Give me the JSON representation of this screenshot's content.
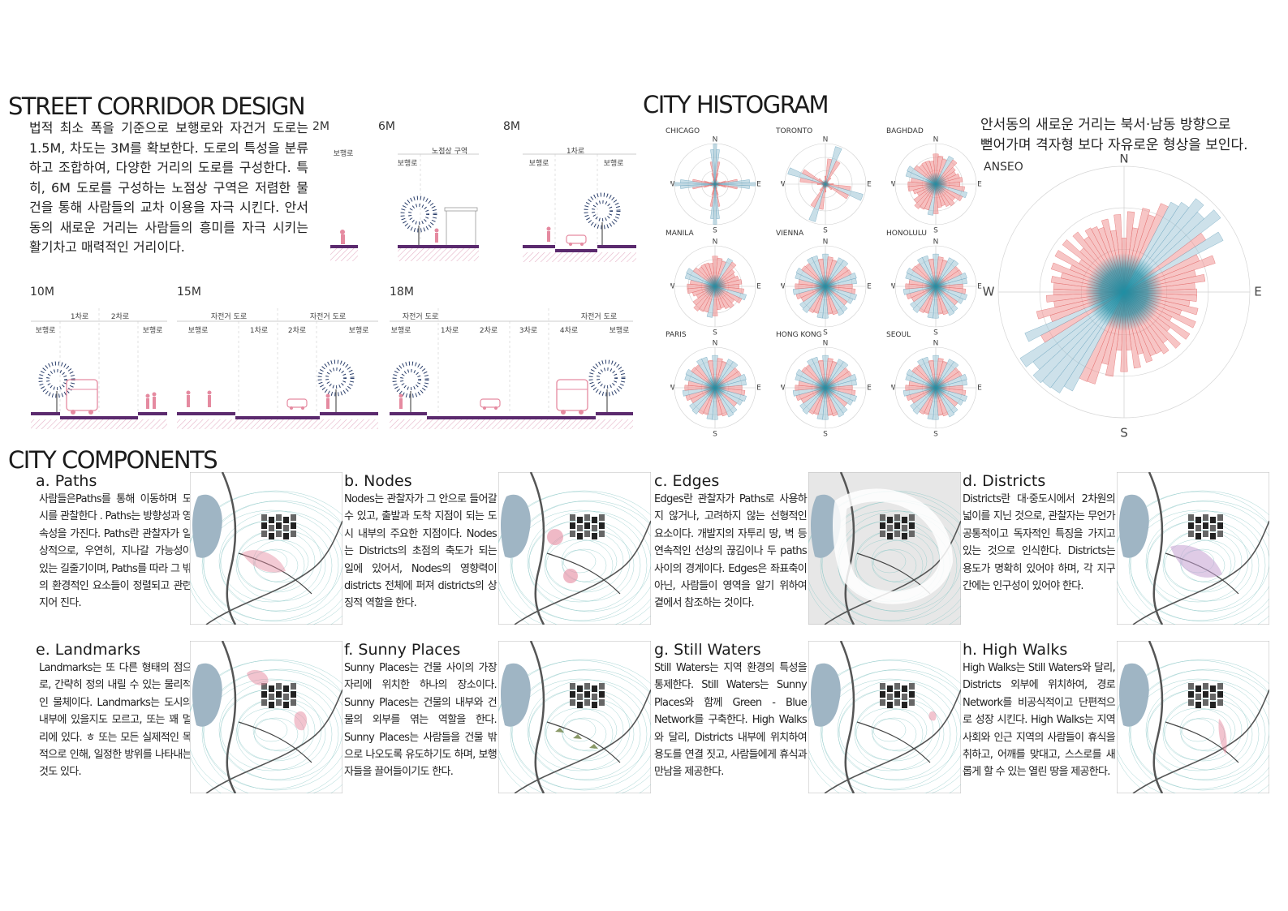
{
  "street_corridor": {
    "title": "STREET CORRIDOR DESIGN",
    "intro": "법적 최소 폭을 기준으로 보행로와 자건거 도로는 1.5M, 차도는 3M를 확보한다. 도로의 특성을 분류하고 조합하여, 다양한 거리의 도로를 구성한다. 특히, 6M 도로를 구성하는 노점상 구역은 저렴한 물건을 통해 사람들의 교차 이용을 자극 시킨다. 안서동의 새로운 거리는 사람들의 흥미를 자극 시키는 활기차고 매력적인 거리이다.",
    "widths": [
      "2M",
      "6M",
      "8M",
      "10M",
      "15M",
      "18M"
    ],
    "zones": {
      "2M": [
        "보행로"
      ],
      "6M_top": [
        "노점상 구역"
      ],
      "6M": [
        "보행로"
      ],
      "8M_top": [
        "1차로"
      ],
      "8M": [
        "보행로",
        "보행로"
      ],
      "10M_top": [
        "1차로",
        "2차로"
      ],
      "10M": [
        "보행로",
        "보행로"
      ],
      "15M_top": [
        "자전거 도로",
        "자전거 도로"
      ],
      "15M": [
        "보행로",
        "1차로",
        "2차로",
        "보행로"
      ],
      "18M_top": [
        "자전거 도로",
        "자전거 도로"
      ],
      "18M": [
        "보행로",
        "1차로",
        "2차로",
        "3차로",
        "4차로",
        "보행로"
      ]
    }
  },
  "city_histogram": {
    "title": "CITY HISTOGRAM",
    "description_lines": [
      "안서동의 새로운 거리는 북서·남동 방향으로",
      "뻗어가며 격자형 보다 자유로운 형상을 보인다."
    ],
    "compass": [
      "N",
      "E",
      "S",
      "W"
    ],
    "cities": [
      "CHICAGO",
      "TORONTO",
      "BAGHDAD",
      "MANILA",
      "VIENNA",
      "HONOLULU",
      "PARIS",
      "HONG KONG",
      "SEOUL"
    ],
    "featured_city": "ANSEO",
    "colors": {
      "petal": "#ef8b8b",
      "petal_alt": "#9cc4d6",
      "core": "#1f8ea3"
    }
  },
  "city_components": {
    "title": "CITY COMPONENTS",
    "items": [
      {
        "title": "a. Paths",
        "text": "사람들은Paths를 통해 이동하며 도시를 관찰한다 . Paths는 방향성과 영속성을 가진다. Paths란 관찰자가 일상적으로, 우연히, 지나갈 가능성이 있는 길줄기이며, Paths를 따라 그 밖의 환경적인 요소들이 정렬되고 관련지어 진다."
      },
      {
        "title": "b. Nodes",
        "text": "Nodes는 관찰자가 그 안으로 들어갈 수 있고, 출발과 도착 지점이 되는 도시 내부의 주요한 지점이다. Nodes는 Districts의 초점의 축도가 되는 일에 있어서, Nodes의 영향력이 districts 전체에 퍼져 districts의 상징적 역할을 한다."
      },
      {
        "title": "c. Edges",
        "text": "Edges란 관찰자가 Paths로 사용하지 않거나, 고려하지 않는 선형적인 요소이다. 개발지의 자투리 땅, 벽 등 연속적인 선상의 끊김이나 두 paths 사이의 경계이다. Edges은 좌표축이 아닌, 사람들이 영역을 알기 위하여 곁에서 참조하는 것이다."
      },
      {
        "title": "d. Districts",
        "text": "Districts란 대·중도시에서 2차원의 넓이를 지닌 것으로, 관찰자는 무언가 공통적이고 독자적인 특징을 가지고 있는 것으로 인식한다. Districts는 용도가 명확히 있어야 하며, 각 지구 간에는 인구성이 있어야 한다."
      },
      {
        "title": "e. Landmarks",
        "text": "Landmarks는 또 다른 형태의 점으로, 간략히 정의 내릴 수 있는 물리적인 물체이다. Landmarks는 도시의 내부에 있을지도 모르고, 또는 꽤 멀리에 있다. ㅎ 또는 모든 실제적인 목적으로 인해, 일정한 방위를 나타내는 것도 있다."
      },
      {
        "title": "f. Sunny Places",
        "text": "Sunny Places는 건물 사이의 가장자리에 위치한 하나의 장소이다. Sunny Places는 건물의 내부와 건물의 외부를 엮는 역할을 한다. Sunny Places는 사람들을 건물 밖으로 나오도록 유도하기도 하며, 보행자들을 끌어들이기도 한다."
      },
      {
        "title": "g. Still Waters",
        "text": "Still Waters는 지역 환경의 특성을 통제한다. Still Waters는 Sunny Places와 함께 Green - Blue Network를 구축한다. High Walks와 달리, Districts 내부에 위치하여 용도를 연결 짓고, 사람들에게 휴식과 만남을 제공한다."
      },
      {
        "title": "h. High Walks",
        "text": "High Walks는 Still Waters와 달리, Districts 외부에 위치하여, 경로 Network를 비공식적이고 단편적으로 성장 시킨다. High Walks는 지역사회와 인근 지역의 사람들이 휴식을 취하고, 어깨를 맞대고, 스스로를 새롭게 할 수 있는 열린 땅을 제공한다."
      }
    ]
  },
  "colors": {
    "road_fill": "#5b2a6e",
    "vegetation": "#2a3e6a",
    "vehicle": "#e58aa0",
    "map_water": "#9fb5c4",
    "map_contour": "#8fc9c8",
    "hatch": "#e6b4c8"
  }
}
